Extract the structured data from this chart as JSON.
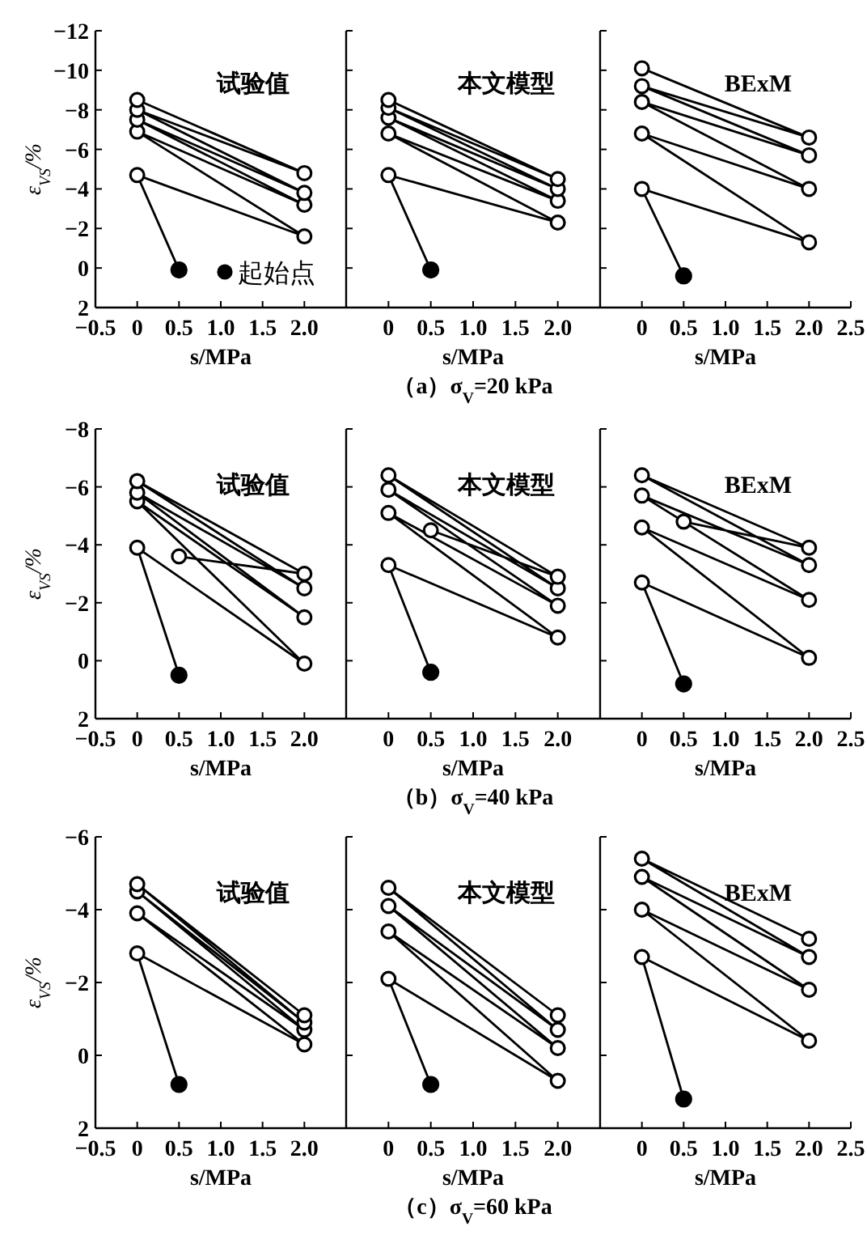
{
  "chart_data": [
    {
      "type": "line",
      "title": "试验值",
      "xlabel": "s/MPa",
      "ylabel": "ε$_{VS}$/%",
      "marker": "circle",
      "legend": "bottom right",
      "xlim": [
        -0.5,
        2.5
      ],
      "ylim": [
        2,
        -12
      ],
      "xticks": [
        {
          "value": -0.5,
          "label": "−0.5"
        },
        0,
        0.5,
        {
          "value": 1,
          "label": "1.0"
        },
        1.5,
        {
          "value": 2,
          "label": "2.0"
        }
      ],
      "yticks": [
        {
          "value": -12,
          "label": "−12"
        },
        {
          "value": -10,
          "label": "−10"
        },
        {
          "value": -8,
          "label": "−8"
        },
        {
          "value": -6,
          "label": "−6"
        },
        {
          "value": -4,
          "label": "−4"
        },
        {
          "value": -2,
          "label": "−2"
        },
        {
          "value": 0,
          "label": "0"
        },
        {
          "value": 2,
          "label": "2"
        }
      ],
      "series": [
        {
          "color": "#000000",
          "x": [
            0.5,
            0,
            2,
            0,
            2,
            0,
            2,
            0,
            2,
            0
          ],
          "values": [
            0.1,
            -4.7,
            -1.6,
            -6.9,
            -3.2,
            -7.5,
            -3.8,
            -8.0,
            -4.8,
            -8.5
          ]
        },
        {
          "type": "scatter",
          "name": "起始点",
          "color": "#000000",
          "x": [
            0.5
          ],
          "values": [
            0.1
          ]
        }
      ]
    },
    {
      "type": "line",
      "title": "本文模型",
      "xlabel": "s/MPa",
      "marker": "circle",
      "tick_labels": "x",
      "xlim": [
        -0.5,
        2.5
      ],
      "ylim": [
        2,
        -12
      ],
      "xticks": [
        0,
        0.5,
        {
          "value": 1,
          "label": "1.0"
        },
        1.5,
        {
          "value": 2,
          "label": "2.0"
        }
      ],
      "yticks": [
        {
          "value": -12,
          "label": null
        },
        {
          "value": -10,
          "label": null
        },
        {
          "value": -8,
          "label": null
        },
        {
          "value": -6,
          "label": null
        },
        {
          "value": -4,
          "label": null
        },
        {
          "value": -2,
          "label": null
        },
        {
          "value": 0,
          "label": null
        },
        {
          "value": 2,
          "label": null
        }
      ],
      "annotations": [
        "（a）σ$_{V}$=20 kPa"
      ],
      "series": [
        {
          "color": "#000000",
          "x": [
            0.5,
            0,
            2,
            0,
            2,
            0,
            2,
            0,
            2,
            0
          ],
          "values": [
            0.1,
            -4.7,
            -2.3,
            -6.8,
            -3.4,
            -7.6,
            -4.0,
            -8.1,
            -4.5,
            -8.5
          ]
        },
        {
          "type": "scatter",
          "color": "#000000",
          "x": [
            0.5
          ],
          "values": [
            0.1
          ]
        }
      ]
    },
    {
      "type": "line",
      "title": "BExM",
      "xlabel": "s/MPa",
      "marker": "circle",
      "tick_labels": "x",
      "xlim": [
        -0.5,
        2.5
      ],
      "ylim": [
        2,
        -12
      ],
      "xticks": [
        0,
        0.5,
        {
          "value": 1,
          "label": "1.0"
        },
        1.5,
        {
          "value": 2,
          "label": "2.0"
        },
        2.5
      ],
      "yticks": [
        {
          "value": -12,
          "label": null
        },
        {
          "value": -10,
          "label": null
        },
        {
          "value": -8,
          "label": null
        },
        {
          "value": -6,
          "label": null
        },
        {
          "value": -4,
          "label": null
        },
        {
          "value": -2,
          "label": null
        },
        {
          "value": 0,
          "label": null
        },
        {
          "value": 2,
          "label": null
        }
      ],
      "series": [
        {
          "color": "#000000",
          "x": [
            0.5,
            0,
            2,
            0,
            2,
            0,
            2,
            0,
            2,
            0
          ],
          "values": [
            0.4,
            -4.0,
            -1.3,
            -6.8,
            -4.0,
            -8.4,
            -5.7,
            -9.2,
            -6.6,
            -10.1
          ]
        },
        {
          "type": "scatter",
          "color": "#000000",
          "x": [
            0.5
          ],
          "values": [
            0.4
          ]
        }
      ]
    },
    {
      "type": "line",
      "title": "试验值",
      "xlabel": "s/MPa",
      "ylabel": "ε$_{VS}$/%",
      "marker": "circle",
      "xlim": [
        -0.5,
        2.5
      ],
      "ylim": [
        2,
        -8
      ],
      "xticks": [
        {
          "value": -0.5,
          "label": "−0.5"
        },
        0,
        0.5,
        {
          "value": 1,
          "label": "1.0"
        },
        1.5,
        {
          "value": 2,
          "label": "2.0"
        }
      ],
      "yticks": [
        {
          "value": -8,
          "label": "−8"
        },
        {
          "value": -6,
          "label": "−6"
        },
        {
          "value": -4,
          "label": "−4"
        },
        {
          "value": -2,
          "label": "−2"
        },
        {
          "value": 0,
          "label": "0"
        },
        {
          "value": 2,
          "label": "2"
        }
      ],
      "series": [
        {
          "color": "#000000",
          "x": [
            0.5,
            0,
            2,
            0,
            2,
            0,
            2,
            0,
            2,
            0.5
          ],
          "values": [
            0.5,
            -3.9,
            0.1,
            -5.5,
            -1.5,
            -5.8,
            -2.5,
            -6.2,
            -3.0,
            -3.6
          ]
        },
        {
          "type": "scatter",
          "color": "#000000",
          "x": [
            0.5
          ],
          "values": [
            0.5
          ]
        }
      ]
    },
    {
      "type": "line",
      "title": "本文模型",
      "xlabel": "s/MPa",
      "marker": "circle",
      "tick_labels": "x",
      "xlim": [
        -0.5,
        2.5
      ],
      "ylim": [
        2,
        -8
      ],
      "xticks": [
        0,
        0.5,
        {
          "value": 1,
          "label": "1.0"
        },
        1.5,
        {
          "value": 2,
          "label": "2.0"
        }
      ],
      "yticks": [
        {
          "value": -8,
          "label": null
        },
        {
          "value": -6,
          "label": null
        },
        {
          "value": -4,
          "label": null
        },
        {
          "value": -2,
          "label": null
        },
        {
          "value": 0,
          "label": null
        },
        {
          "value": 2,
          "label": null
        }
      ],
      "annotations": [
        "（b）σ$_{V}$=40 kPa"
      ],
      "series": [
        {
          "color": "#000000",
          "x": [
            0.5,
            0,
            2,
            0,
            2,
            0,
            2,
            0,
            2,
            0.5
          ],
          "values": [
            0.4,
            -3.3,
            -0.8,
            -5.1,
            -1.9,
            -5.9,
            -2.5,
            -6.4,
            -2.9,
            -4.5
          ]
        },
        {
          "type": "scatter",
          "color": "#000000",
          "x": [
            0.5
          ],
          "values": [
            0.4
          ]
        }
      ]
    },
    {
      "type": "line",
      "title": "BExM",
      "xlabel": "s/MPa",
      "marker": "circle",
      "tick_labels": "x",
      "xlim": [
        -0.5,
        2.5
      ],
      "ylim": [
        2,
        -8
      ],
      "xticks": [
        0,
        0.5,
        {
          "value": 1,
          "label": "1.0"
        },
        1.5,
        {
          "value": 2,
          "label": "2.0"
        },
        2.5
      ],
      "yticks": [
        {
          "value": -8,
          "label": null
        },
        {
          "value": -6,
          "label": null
        },
        {
          "value": -4,
          "label": null
        },
        {
          "value": -2,
          "label": null
        },
        {
          "value": 0,
          "label": null
        },
        {
          "value": 2,
          "label": null
        }
      ],
      "series": [
        {
          "color": "#000000",
          "x": [
            0.5,
            0,
            2,
            0,
            2,
            0,
            2,
            0,
            2,
            0.5
          ],
          "values": [
            0.8,
            -2.7,
            -0.1,
            -4.6,
            -2.1,
            -5.7,
            -3.3,
            -6.4,
            -3.9,
            -4.8
          ]
        },
        {
          "type": "scatter",
          "color": "#000000",
          "x": [
            0.5
          ],
          "values": [
            0.8
          ]
        }
      ]
    },
    {
      "type": "line",
      "title": "试验值",
      "xlabel": "s/MPa",
      "ylabel": "ε$_{VS}$/%",
      "marker": "circle",
      "xlim": [
        -0.5,
        2.5
      ],
      "ylim": [
        2,
        -6
      ],
      "xticks": [
        {
          "value": -0.5,
          "label": "−0.5"
        },
        0,
        0.5,
        {
          "value": 1,
          "label": "1.0"
        },
        1.5,
        {
          "value": 2,
          "label": "2.0"
        }
      ],
      "yticks": [
        {
          "value": -6,
          "label": "−6"
        },
        {
          "value": -4,
          "label": "−4"
        },
        {
          "value": -2,
          "label": "−2"
        },
        {
          "value": 0,
          "label": "0"
        },
        {
          "value": 2,
          "label": "2"
        }
      ],
      "series": [
        {
          "color": "#000000",
          "x": [
            0.5,
            0,
            2,
            0,
            2,
            0,
            2,
            0,
            2
          ],
          "values": [
            0.8,
            -2.8,
            -0.3,
            -3.9,
            -0.7,
            -4.5,
            -0.9,
            -4.7,
            -1.1
          ]
        },
        {
          "type": "scatter",
          "color": "#000000",
          "x": [
            0.5
          ],
          "values": [
            0.8
          ]
        }
      ]
    },
    {
      "type": "line",
      "title": "本文模型",
      "xlabel": "s/MPa",
      "marker": "circle",
      "tick_labels": "x",
      "xlim": [
        -0.5,
        2.5
      ],
      "ylim": [
        2,
        -6
      ],
      "xticks": [
        0,
        0.5,
        {
          "value": 1,
          "label": "1.0"
        },
        1.5,
        {
          "value": 2,
          "label": "2.0"
        }
      ],
      "yticks": [
        {
          "value": -6,
          "label": null
        },
        {
          "value": -4,
          "label": null
        },
        {
          "value": -2,
          "label": null
        },
        {
          "value": 0,
          "label": null
        },
        {
          "value": 2,
          "label": null
        }
      ],
      "annotations": [
        "（c）σ$_{V}$=60 kPa"
      ],
      "series": [
        {
          "color": "#000000",
          "x": [
            0.5,
            0,
            2,
            0,
            2,
            0,
            2,
            0,
            2
          ],
          "values": [
            0.8,
            -2.1,
            0.7,
            -3.4,
            -0.2,
            -4.1,
            -0.7,
            -4.6,
            -1.1
          ]
        },
        {
          "type": "scatter",
          "color": "#000000",
          "x": [
            0.5
          ],
          "values": [
            0.8
          ]
        }
      ]
    },
    {
      "type": "line",
      "title": "BExM",
      "xlabel": "s/MPa",
      "marker": "circle",
      "tick_labels": "x",
      "xlim": [
        -0.5,
        2.5
      ],
      "ylim": [
        2,
        -6
      ],
      "xticks": [
        0,
        0.5,
        {
          "value": 1,
          "label": "1.0"
        },
        1.5,
        {
          "value": 2,
          "label": "2.0"
        },
        2.5
      ],
      "yticks": [
        {
          "value": -6,
          "label": null
        },
        {
          "value": -4,
          "label": null
        },
        {
          "value": -2,
          "label": null
        },
        {
          "value": 0,
          "label": null
        },
        {
          "value": 2,
          "label": null
        }
      ],
      "series": [
        {
          "color": "#000000",
          "x": [
            0.5,
            0,
            2,
            0,
            2,
            0,
            2,
            0,
            2
          ],
          "values": [
            1.2,
            -2.7,
            -0.4,
            -4.0,
            -1.8,
            -4.9,
            -2.7,
            -5.4,
            -3.2
          ]
        },
        {
          "type": "scatter",
          "color": "#000000",
          "x": [
            0.5
          ],
          "values": [
            1.2
          ]
        }
      ]
    }
  ]
}
